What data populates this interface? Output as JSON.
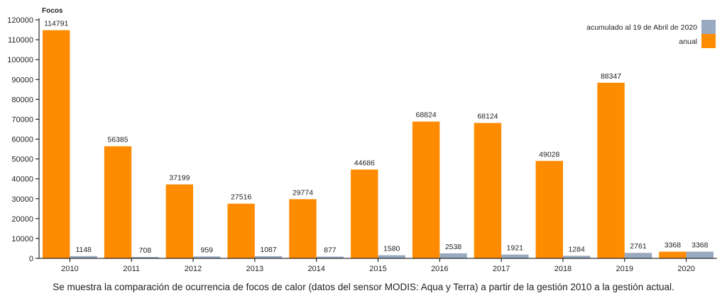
{
  "colors": {
    "anual": "#ff8c00",
    "acumulado": "#98a9c0",
    "axis": "#000000",
    "text": "#222222"
  },
  "chart_data": {
    "type": "bar",
    "ylabel": "Focos",
    "ylim": [
      0,
      120000
    ],
    "yticks": [
      0,
      10000,
      20000,
      30000,
      40000,
      50000,
      60000,
      70000,
      80000,
      90000,
      100000,
      110000,
      120000
    ],
    "categories": [
      "2010",
      "2011",
      "2012",
      "2013",
      "2014",
      "2015",
      "2016",
      "2017",
      "2018",
      "2019",
      "2020"
    ],
    "series": [
      {
        "name": "anual",
        "values": [
          114791,
          56385,
          37199,
          27516,
          29774,
          44686,
          68824,
          68124,
          49028,
          88347,
          3368
        ]
      },
      {
        "name": "acumulado al 19 de Abril de 2020",
        "values": [
          1148,
          708,
          959,
          1087,
          877,
          1580,
          2538,
          1921,
          1284,
          2761,
          3368
        ]
      }
    ],
    "legend_position": "top-right",
    "grid": false
  },
  "caption": "Se muestra la comparación de ocurrencia de focos de calor (datos del sensor MODIS: Aqua y Terra) a partir de la gestión 2010 a la gestión actual."
}
